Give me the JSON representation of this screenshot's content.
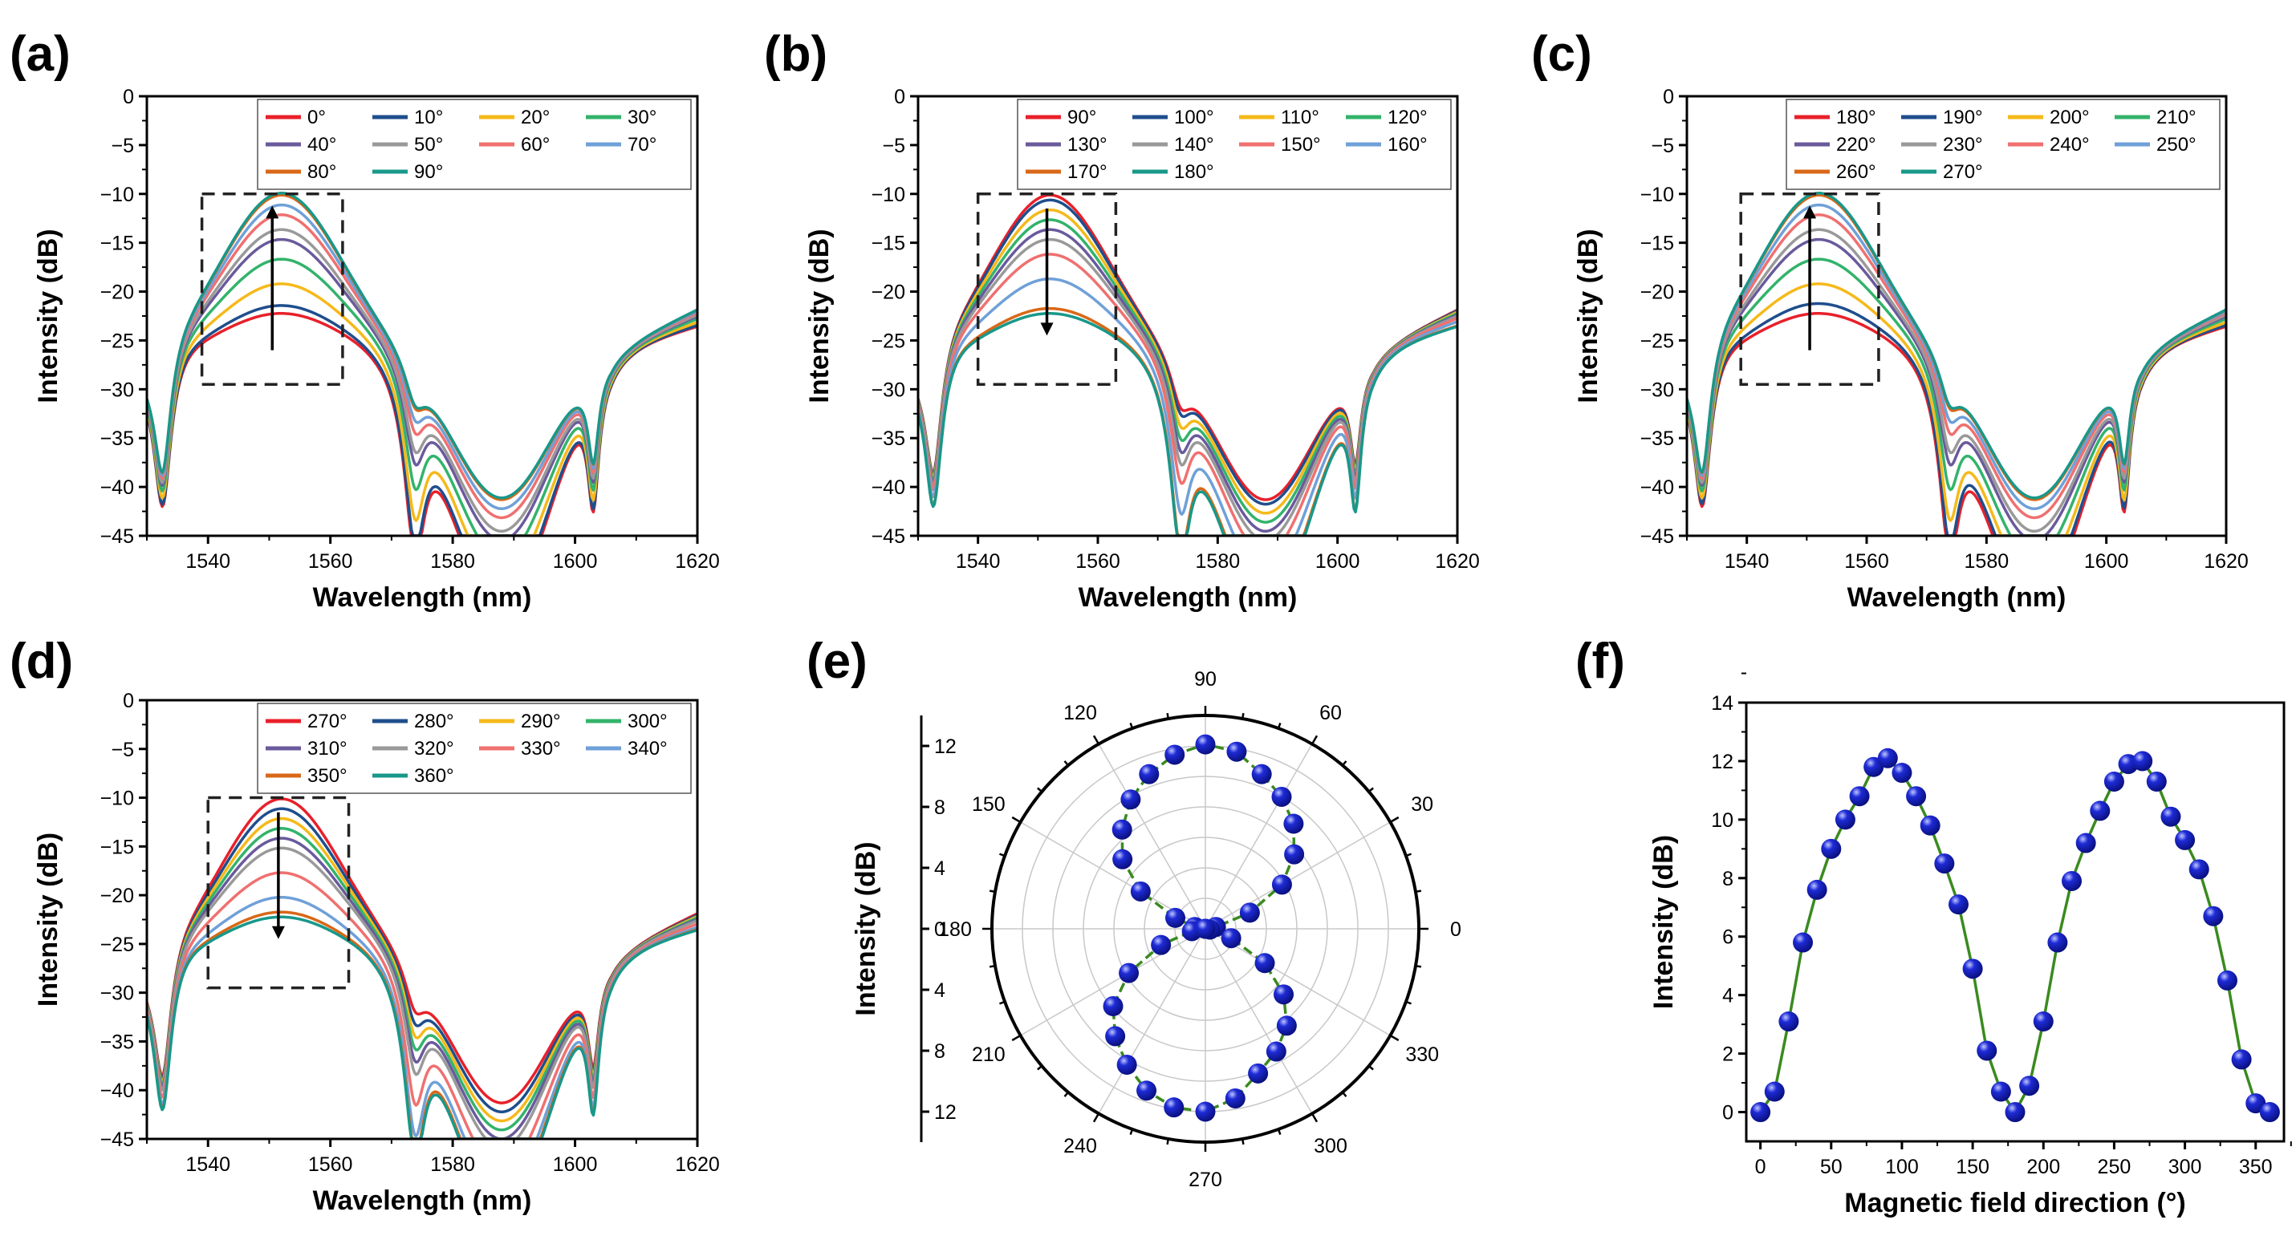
{
  "figure": {
    "panel_labels": [
      "(a)",
      "(b)",
      "(c)",
      "(d)",
      "(e)",
      "(f)"
    ],
    "colors": {
      "palette": [
        "#e8202a",
        "#1f4e8c",
        "#f5b91a",
        "#33b36b",
        "#6a5a9c",
        "#999999",
        "#f07070",
        "#6fa0d8",
        "#d86818",
        "#18988a"
      ],
      "marker": "#1e2bd6",
      "fit_line": "#3a8a1f",
      "box": "#222222"
    }
  },
  "chart_data": [
    {
      "panel": "(a)",
      "type": "line",
      "xlabel": "Wavelength (nm)",
      "ylabel": "Intensity (dB)",
      "xlim": [
        1530,
        1620
      ],
      "ylim": [
        -45,
        0
      ],
      "xticks": [
        "1540",
        "1560",
        "1580",
        "1600",
        "1620"
      ],
      "yticks": [
        "0",
        "−5",
        "−10",
        "−15",
        "−20",
        "−25",
        "−30",
        "−35",
        "−40",
        "−45"
      ],
      "legend_labels": [
        "0°",
        "10°",
        "20°",
        "30°",
        "40°",
        "50°",
        "60°",
        "70°",
        "80°",
        "90°"
      ],
      "legend_location": "top-right",
      "arrow_direction": "up",
      "dashed_box": {
        "x": [
          1539,
          1562
        ],
        "y": [
          -29.5,
          -10
        ]
      },
      "peak_values": [
        -22.0,
        -21.2,
        -19.0,
        -16.5,
        -14.5,
        -13.5,
        -12.0,
        -11.0,
        -10.0,
        -9.8
      ]
    },
    {
      "panel": "(b)",
      "type": "line",
      "xlabel": "Wavelength (nm)",
      "ylabel": "Intensity (dB)",
      "xlim": [
        1530,
        1620
      ],
      "ylim": [
        -45,
        0
      ],
      "xticks": [
        "1540",
        "1560",
        "1580",
        "1600",
        "1620"
      ],
      "yticks": [
        "0",
        "−5",
        "−10",
        "−15",
        "−20",
        "−25",
        "−30",
        "−35",
        "−40",
        "−45"
      ],
      "legend_labels": [
        "90°",
        "100°",
        "110°",
        "120°",
        "130°",
        "140°",
        "150°",
        "160°",
        "170°",
        "180°"
      ],
      "legend_location": "top-right",
      "arrow_direction": "down",
      "dashed_box": {
        "x": [
          1540,
          1563
        ],
        "y": [
          -29.5,
          -10
        ]
      },
      "peak_values": [
        -10.0,
        -10.5,
        -11.5,
        -12.5,
        -13.5,
        -14.5,
        -16.0,
        -18.5,
        -21.5,
        -22.0
      ]
    },
    {
      "panel": "(c)",
      "type": "line",
      "xlabel": "Wavelength (nm)",
      "ylabel": "Intensity (dB)",
      "xlim": [
        1530,
        1620
      ],
      "ylim": [
        -45,
        0
      ],
      "xticks": [
        "1540",
        "1560",
        "1580",
        "1600",
        "1620"
      ],
      "yticks": [
        "0",
        "−5",
        "−10",
        "−15",
        "−20",
        "−25",
        "−30",
        "−35",
        "−40",
        "−45"
      ],
      "legend_labels": [
        "180°",
        "190°",
        "200°",
        "210°",
        "220°",
        "230°",
        "240°",
        "250°",
        "260°",
        "270°"
      ],
      "legend_location": "top-right",
      "arrow_direction": "up",
      "dashed_box": {
        "x": [
          1539,
          1562
        ],
        "y": [
          -29.5,
          -10
        ]
      },
      "peak_values": [
        -22.0,
        -21.0,
        -19.0,
        -16.5,
        -14.5,
        -13.5,
        -12.0,
        -11.0,
        -10.0,
        -9.8
      ]
    },
    {
      "panel": "(d)",
      "type": "line",
      "xlabel": "Wavelength (nm)",
      "ylabel": "Intensity (dB)",
      "xlim": [
        1530,
        1620
      ],
      "ylim": [
        -45,
        0
      ],
      "xticks": [
        "1540",
        "1560",
        "1580",
        "1600",
        "1620"
      ],
      "yticks": [
        "0",
        "−5",
        "−10",
        "−15",
        "−20",
        "−25",
        "−30",
        "−35",
        "−40",
        "−45"
      ],
      "legend_labels": [
        "270°",
        "280°",
        "290°",
        "300°",
        "310°",
        "320°",
        "330°",
        "340°",
        "350°",
        "360°"
      ],
      "legend_location": "top-right",
      "arrow_direction": "down",
      "dashed_box": {
        "x": [
          1540,
          1563
        ],
        "y": [
          -29.5,
          -10
        ]
      },
      "peak_values": [
        -10.0,
        -11.0,
        -12.0,
        -13.0,
        -14.0,
        -15.0,
        -17.5,
        -20.0,
        -21.5,
        -22.0
      ]
    },
    {
      "panel": "(e)",
      "type": "scatter",
      "coordinate_system": "polar",
      "ylabel": "Intensity (dB)",
      "radial_range": [
        0,
        14
      ],
      "radial_ticks": [
        "0",
        "4",
        "8",
        "12"
      ],
      "angle_ticks": [
        "0",
        "30",
        "60",
        "90",
        "120",
        "150",
        "180",
        "210",
        "240",
        "270",
        "300",
        "330"
      ],
      "theta_deg": [
        0,
        10,
        20,
        30,
        40,
        50,
        60,
        70,
        80,
        90,
        100,
        110,
        120,
        130,
        140,
        150,
        160,
        170,
        180,
        190,
        200,
        210,
        220,
        230,
        240,
        250,
        260,
        270,
        280,
        290,
        300,
        310,
        320,
        330,
        340,
        350,
        360
      ],
      "values": [
        0.0,
        0.7,
        3.1,
        5.8,
        7.6,
        9.0,
        10.0,
        10.8,
        11.8,
        12.1,
        11.6,
        10.8,
        9.8,
        8.5,
        7.1,
        4.9,
        2.1,
        0.7,
        0.0,
        0.9,
        3.1,
        5.8,
        7.9,
        9.2,
        10.3,
        11.3,
        11.9,
        12.0,
        11.3,
        10.1,
        9.3,
        8.3,
        6.7,
        4.5,
        1.8,
        0.3,
        0.0
      ]
    },
    {
      "panel": "(f)",
      "type": "scatter",
      "xlabel": "Magnetic field direction (°)",
      "ylabel": "Intensity (dB)",
      "xlim": [
        -10,
        370
      ],
      "ylim": [
        -1,
        14
      ],
      "xticks": [
        "0",
        "50",
        "100",
        "150",
        "200",
        "250",
        "300",
        "350"
      ],
      "yticks": [
        "0",
        "2",
        "4",
        "6",
        "8",
        "10",
        "12",
        "14"
      ],
      "x": [
        0,
        10,
        20,
        30,
        40,
        50,
        60,
        70,
        80,
        90,
        100,
        110,
        120,
        130,
        140,
        150,
        160,
        170,
        180,
        190,
        200,
        210,
        220,
        230,
        240,
        250,
        260,
        270,
        280,
        290,
        300,
        310,
        320,
        330,
        340,
        350,
        360
      ],
      "values": [
        0.0,
        0.7,
        3.1,
        5.8,
        7.6,
        9.0,
        10.0,
        10.8,
        11.8,
        12.1,
        11.6,
        10.8,
        9.8,
        8.5,
        7.1,
        4.9,
        2.1,
        0.7,
        0.0,
        0.9,
        3.1,
        5.8,
        7.9,
        9.2,
        10.3,
        11.3,
        11.9,
        12.0,
        11.3,
        10.1,
        9.3,
        8.3,
        6.7,
        4.5,
        1.8,
        0.3,
        0.0
      ]
    }
  ]
}
